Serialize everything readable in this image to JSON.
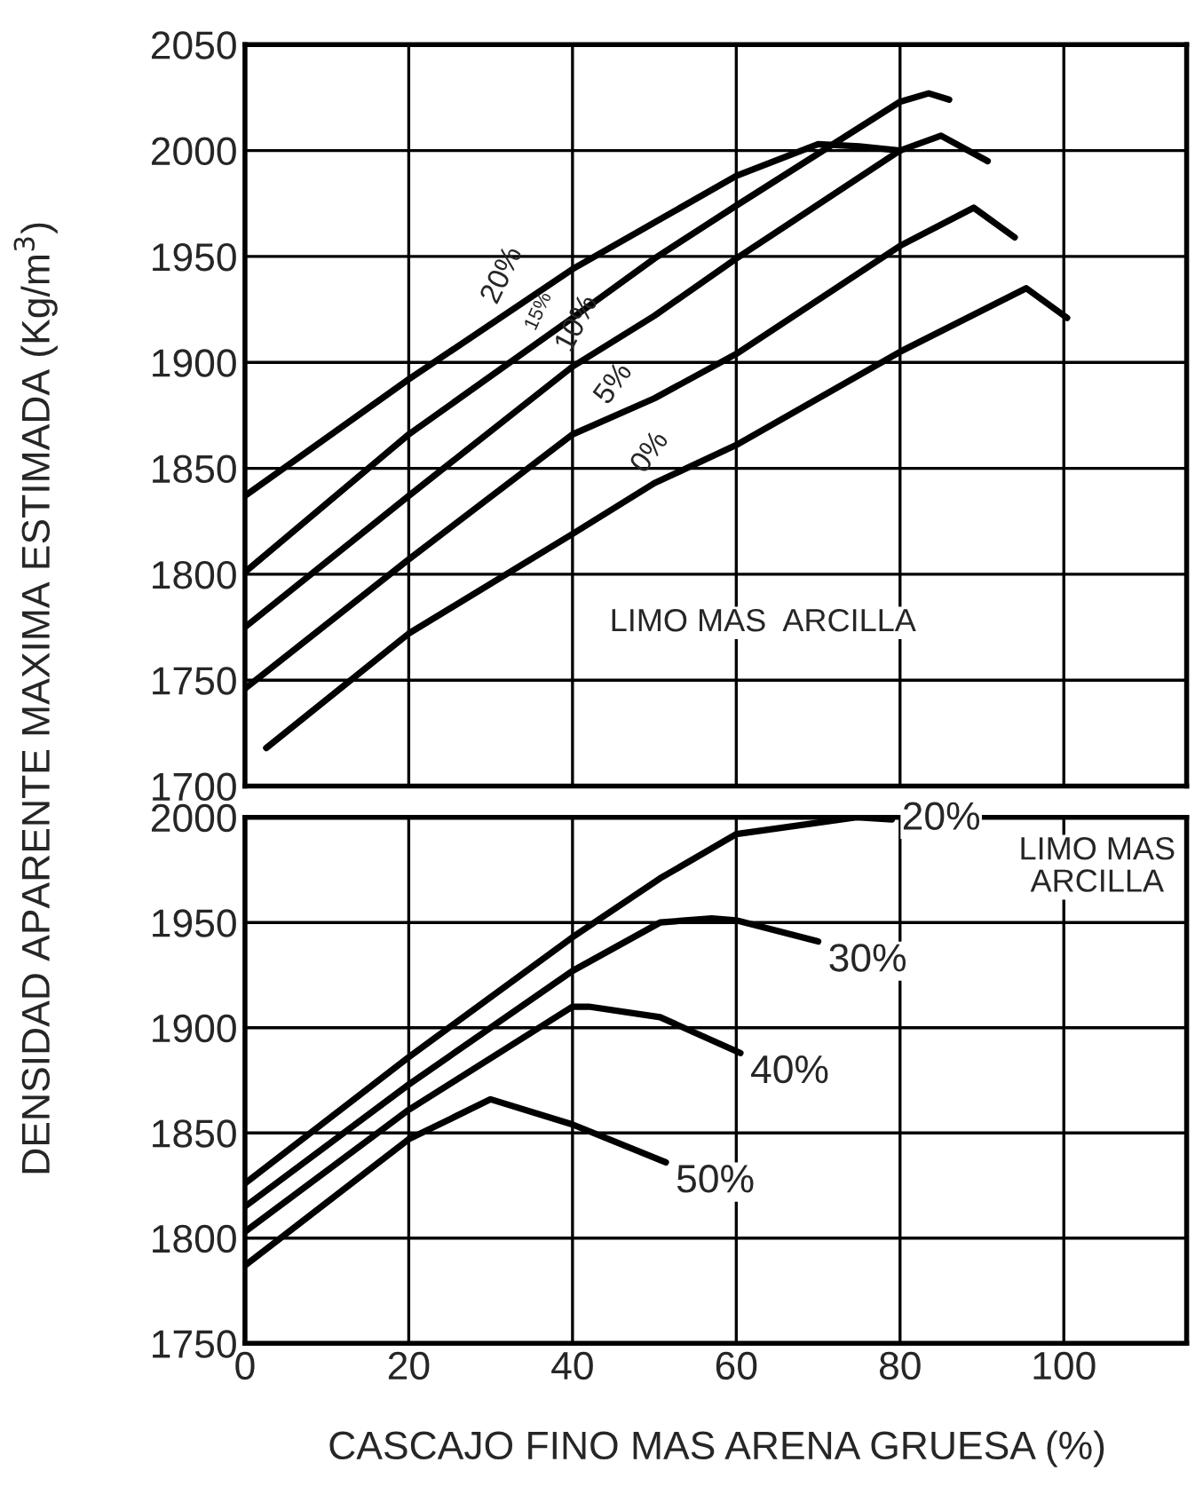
{
  "chart_data": [
    {
      "type": "line",
      "ylabel": "DENSIDAD APARENTE MAXIMA ESTIMADA (Kg/m$^{3}$)",
      "xlim": [
        0,
        115
      ],
      "ylim": [
        1700,
        2050
      ],
      "xticks": [
        0,
        20,
        40,
        60,
        80,
        100
      ],
      "yticks": [
        1700,
        1750,
        1800,
        1850,
        1900,
        1950,
        2000,
        2050
      ],
      "grid": true,
      "tick_labels": "y",
      "annotations": [
        "LIMO MAS  ARCILLA"
      ],
      "series": [
        {
          "name": "20%",
          "color": "#000000",
          "x": [
            0,
            20,
            40,
            50,
            60,
            70,
            75,
            80
          ],
          "values": [
            1837,
            1892,
            1944,
            1966,
            1988,
            2003,
            2002,
            2000
          ]
        },
        {
          "name": "15%",
          "color": "#000000",
          "x": [
            0,
            20,
            40,
            50,
            60,
            80,
            83.5,
            86
          ],
          "values": [
            1801,
            1866,
            1921,
            1949,
            1974,
            2023,
            2027,
            2024
          ]
        },
        {
          "name": "10%",
          "color": "#000000",
          "x": [
            0,
            20,
            40,
            50,
            60,
            80,
            85,
            90.7
          ],
          "values": [
            1775,
            1837,
            1898,
            1922,
            1949,
            2000,
            2007,
            1995
          ]
        },
        {
          "name": "5%",
          "color": "#000000",
          "x": [
            0,
            20,
            40,
            50,
            60,
            80,
            89,
            94
          ],
          "values": [
            1746,
            1807,
            1866,
            1883,
            1904,
            1955,
            1973,
            1959
          ]
        },
        {
          "name": "0%",
          "color": "#000000",
          "x": [
            2.6,
            20,
            40,
            50,
            60,
            80,
            95.4,
            100.4
          ],
          "values": [
            1718,
            1772,
            1819,
            1843,
            1861,
            1905,
            1935,
            1921
          ]
        }
      ]
    },
    {
      "type": "line",
      "xlabel": "CASCAJO FINO MAS ARENA GRUESA (%)",
      "xlim": [
        0,
        115
      ],
      "ylim": [
        1750,
        2000
      ],
      "xticks": [
        0,
        20,
        40,
        60,
        80,
        100
      ],
      "yticks": [
        1750,
        1800,
        1850,
        1900,
        1950,
        2000
      ],
      "grid": true,
      "annotations": [
        "LIMO MAS\nARCILLA"
      ],
      "series": [
        {
          "name": "20%",
          "color": "#000000",
          "x": [
            0,
            20,
            40,
            50.7,
            60,
            74.7,
            79
          ],
          "values": [
            1826,
            1886,
            1943,
            1971,
            1992,
            2000,
            1999
          ]
        },
        {
          "name": "30%",
          "color": "#000000",
          "x": [
            0,
            20,
            40,
            50.7,
            57,
            60,
            70
          ],
          "values": [
            1815,
            1873,
            1927,
            1950,
            1952,
            1951,
            1941
          ]
        },
        {
          "name": "40%",
          "color": "#000000",
          "x": [
            0,
            20,
            40,
            42,
            50.7,
            60.5
          ],
          "values": [
            1803,
            1861,
            1910,
            1910,
            1905,
            1888
          ]
        },
        {
          "name": "50%",
          "color": "#000000",
          "x": [
            0,
            20,
            30,
            40,
            51.4
          ],
          "values": [
            1787,
            1847,
            1866,
            1854,
            1836
          ]
        }
      ]
    }
  ]
}
